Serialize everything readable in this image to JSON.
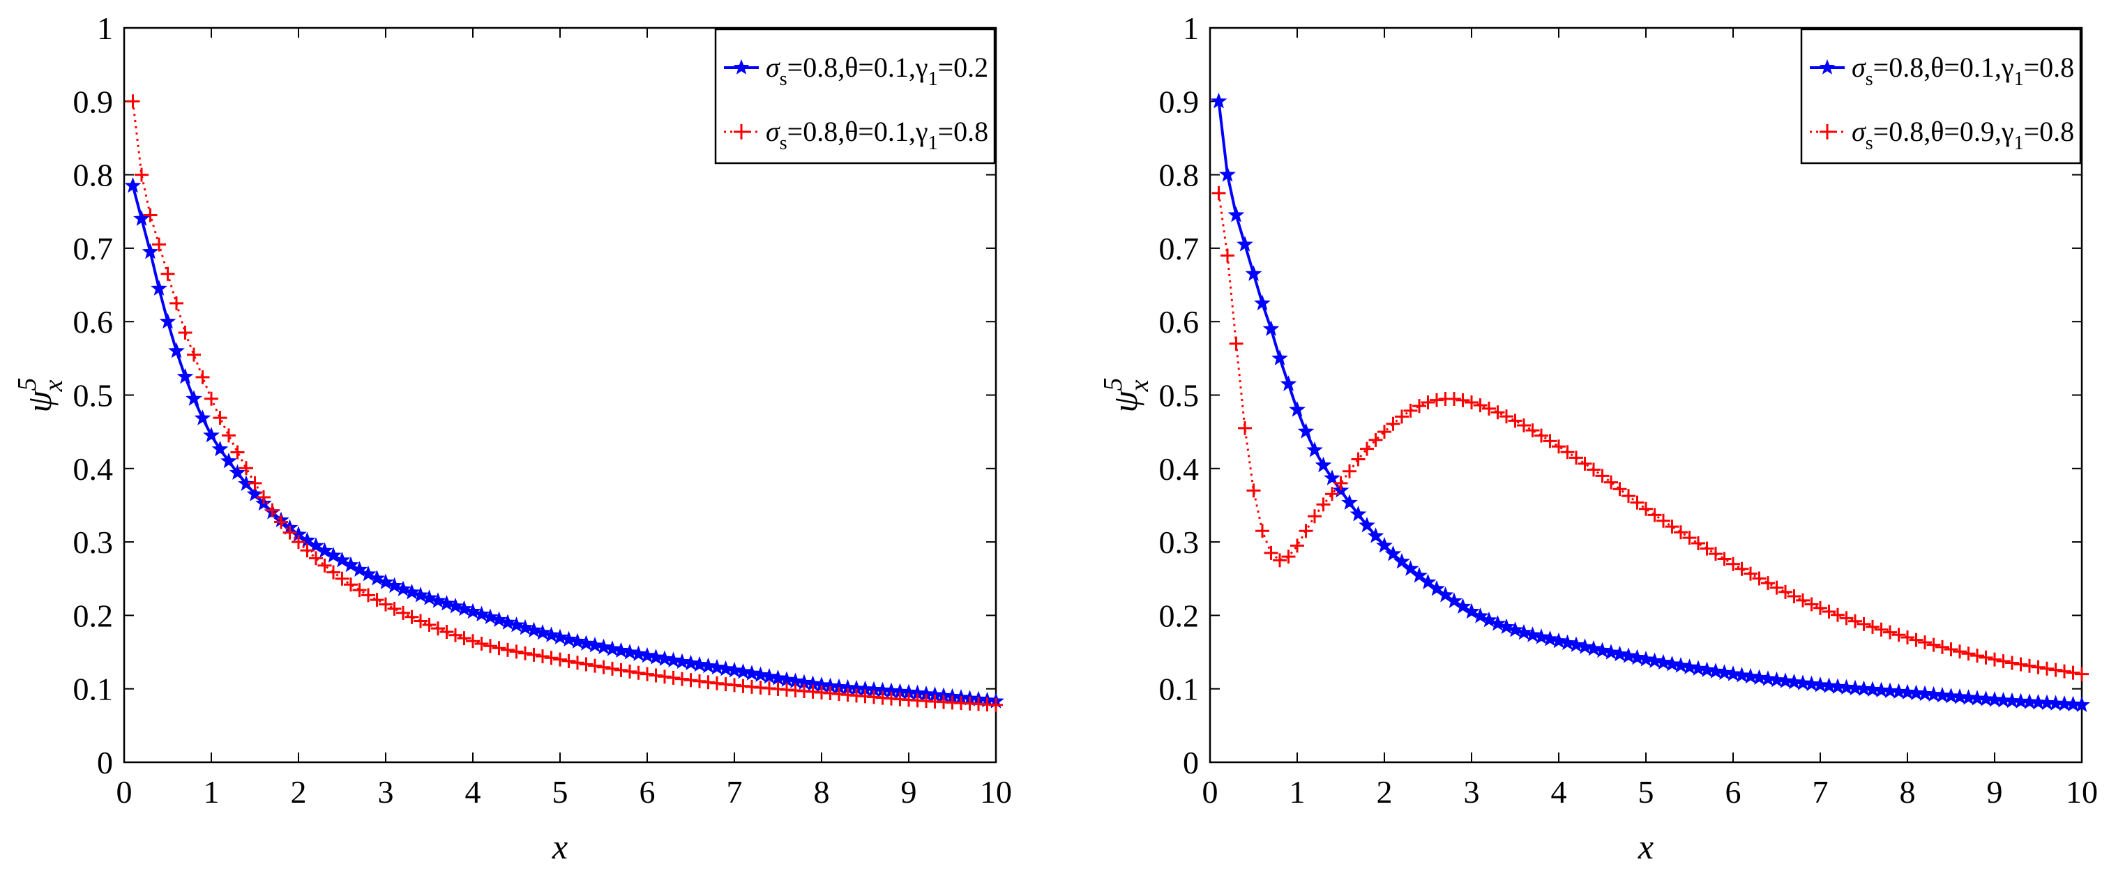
{
  "chart_data": [
    {
      "type": "line",
      "title": "",
      "xlabel": "x",
      "ylabel": "ψ",
      "ylabel_superscript": "5",
      "ylabel_subscript": "x",
      "xlim": [
        0,
        10
      ],
      "ylim": [
        0,
        1
      ],
      "xticks": [
        "0",
        "1",
        "2",
        "3",
        "4",
        "5",
        "6",
        "7",
        "8",
        "9",
        "10"
      ],
      "yticks": [
        "0",
        "0.1",
        "0.2",
        "0.3",
        "0.4",
        "0.5",
        "0.6",
        "0.7",
        "0.8",
        "0.9",
        "1"
      ],
      "grid": false,
      "legend_position": "top-right",
      "series": [
        {
          "name": "σs=0.8,θ=0.1,γ1=0.2",
          "legend": {
            "p1": "σ",
            "s1": "s",
            "p2": "=0.8,θ=0.1,γ",
            "s2": "1",
            "p3": "=0.2"
          },
          "color": "#0000ff",
          "marker": "star",
          "linestyle": "solid",
          "x": [
            0.1,
            0.2,
            0.3,
            0.4,
            0.5,
            0.6,
            0.7,
            0.8,
            1.0,
            1.2,
            1.5,
            1.75,
            2.0,
            2.5,
            3.0,
            4.0,
            5.0,
            6.0,
            7.0,
            8.0,
            9.0,
            10.0
          ],
          "values": [
            0.785,
            0.74,
            0.695,
            0.645,
            0.6,
            0.56,
            0.525,
            0.495,
            0.445,
            0.41,
            0.365,
            0.335,
            0.31,
            0.275,
            0.245,
            0.205,
            0.17,
            0.145,
            0.125,
            0.105,
            0.095,
            0.083
          ]
        },
        {
          "name": "σs=0.8,θ=0.1,γ1=0.8",
          "legend": {
            "p1": "σ",
            "s1": "s",
            "p2": "=0.8,θ=0.1,γ",
            "s2": "1",
            "p3": "=0.8"
          },
          "color": "#ff0000",
          "marker": "plus",
          "linestyle": "dotted",
          "x": [
            0.1,
            0.2,
            0.3,
            0.4,
            0.5,
            0.6,
            0.7,
            0.8,
            1.0,
            1.2,
            1.5,
            1.75,
            2.0,
            2.5,
            3.0,
            4.0,
            5.0,
            6.0,
            7.0,
            8.0,
            9.0,
            10.0
          ],
          "values": [
            0.9,
            0.8,
            0.745,
            0.705,
            0.665,
            0.625,
            0.585,
            0.555,
            0.495,
            0.445,
            0.38,
            0.335,
            0.3,
            0.25,
            0.215,
            0.165,
            0.14,
            0.12,
            0.105,
            0.095,
            0.085,
            0.078
          ]
        }
      ]
    },
    {
      "type": "line",
      "title": "",
      "xlabel": "x",
      "ylabel": "ψ",
      "ylabel_superscript": "5",
      "ylabel_subscript": "x",
      "xlim": [
        0,
        10
      ],
      "ylim": [
        0,
        1
      ],
      "xticks": [
        "0",
        "1",
        "2",
        "3",
        "4",
        "5",
        "6",
        "7",
        "8",
        "9",
        "10"
      ],
      "yticks": [
        "0",
        "0.1",
        "0.2",
        "0.3",
        "0.4",
        "0.5",
        "0.6",
        "0.7",
        "0.8",
        "0.9",
        "1"
      ],
      "grid": false,
      "legend_position": "top-right",
      "series": [
        {
          "name": "σs=0.8,θ=0.1,γ1=0.8",
          "legend": {
            "p1": "σ",
            "s1": "s",
            "p2": "=0.8,θ=0.1,γ",
            "s2": "1",
            "p3": "=0.8"
          },
          "color": "#0000ff",
          "marker": "star",
          "linestyle": "solid",
          "x": [
            0.1,
            0.2,
            0.3,
            0.4,
            0.5,
            0.6,
            0.7,
            0.8,
            0.9,
            1.0,
            1.2,
            1.5,
            1.75,
            2.0,
            2.5,
            3.0,
            3.5,
            4.0,
            5.0,
            6.0,
            7.0,
            8.0,
            9.0,
            10.0
          ],
          "values": [
            0.9,
            0.8,
            0.745,
            0.705,
            0.665,
            0.625,
            0.59,
            0.55,
            0.515,
            0.48,
            0.425,
            0.37,
            0.33,
            0.295,
            0.245,
            0.205,
            0.18,
            0.165,
            0.14,
            0.12,
            0.105,
            0.095,
            0.085,
            0.078
          ]
        },
        {
          "name": "σs=0.8,θ=0.9,γ1=0.8",
          "legend": {
            "p1": "σ",
            "s1": "s",
            "p2": "=0.8,θ=0.9,γ",
            "s2": "1",
            "p3": "=0.8"
          },
          "color": "#ff0000",
          "marker": "plus",
          "linestyle": "dotted",
          "x": [
            0.1,
            0.2,
            0.3,
            0.4,
            0.5,
            0.6,
            0.7,
            0.8,
            0.9,
            1.0,
            1.2,
            1.5,
            1.75,
            2.0,
            2.25,
            2.5,
            2.75,
            3.0,
            3.5,
            4.0,
            4.5,
            5.0,
            6.0,
            7.0,
            8.0,
            9.0,
            10.0
          ],
          "values": [
            0.775,
            0.69,
            0.57,
            0.455,
            0.37,
            0.315,
            0.285,
            0.275,
            0.28,
            0.295,
            0.335,
            0.38,
            0.42,
            0.45,
            0.475,
            0.49,
            0.495,
            0.49,
            0.465,
            0.43,
            0.39,
            0.345,
            0.27,
            0.21,
            0.17,
            0.14,
            0.12
          ]
        }
      ]
    }
  ]
}
